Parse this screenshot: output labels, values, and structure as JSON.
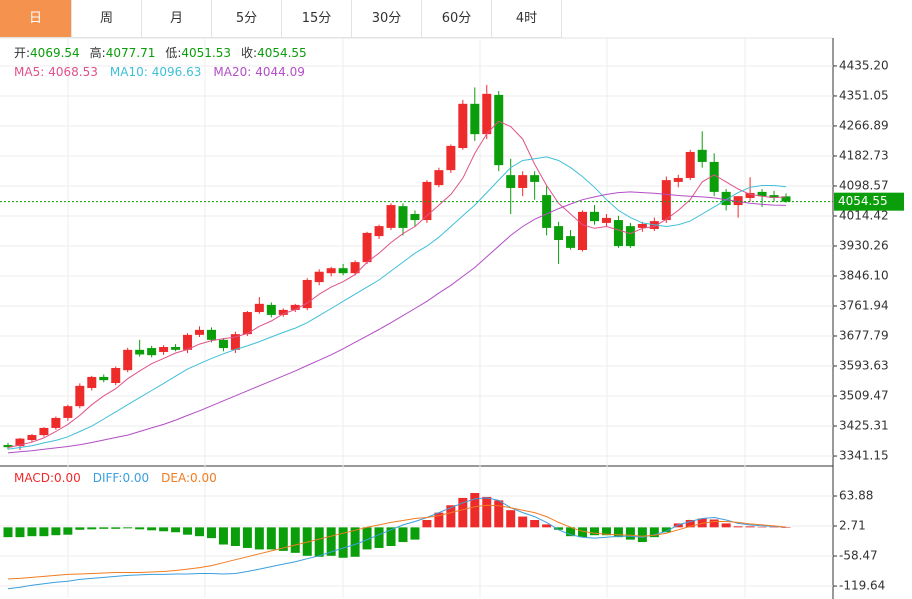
{
  "tabs": [
    "日",
    "周",
    "月",
    "5分",
    "15分",
    "30分",
    "60分",
    "4时"
  ],
  "chart_data": [
    {
      "type": "candlestick",
      "ohlc_labels": [
        "开:",
        "高:",
        "低:",
        "收:"
      ],
      "up_color": "#ee2b2b",
      "down_color": "#0a9e0a",
      "last_price_line": true,
      "grid": true,
      "ohlc": [
        [
          3372,
          3378,
          3360,
          3366
        ],
        [
          3369,
          3392,
          3358,
          3390
        ],
        [
          3386,
          3403,
          3380,
          3400
        ],
        [
          3400,
          3422,
          3395,
          3420
        ],
        [
          3420,
          3452,
          3415,
          3448
        ],
        [
          3448,
          3485,
          3440,
          3481
        ],
        [
          3481,
          3545,
          3475,
          3538
        ],
        [
          3532,
          3566,
          3525,
          3563
        ],
        [
          3563,
          3570,
          3548,
          3554
        ],
        [
          3546,
          3592,
          3540,
          3588
        ],
        [
          3582,
          3645,
          3576,
          3639
        ],
        [
          3639,
          3667,
          3620,
          3626
        ],
        [
          3644,
          3650,
          3618,
          3624
        ],
        [
          3633,
          3652,
          3625,
          3647
        ],
        [
          3647,
          3655,
          3635,
          3639
        ],
        [
          3639,
          3686,
          3630,
          3681
        ],
        [
          3681,
          3705,
          3675,
          3695
        ],
        [
          3695,
          3702,
          3660,
          3667
        ],
        [
          3667,
          3672,
          3635,
          3644
        ],
        [
          3639,
          3690,
          3630,
          3683
        ],
        [
          3683,
          3748,
          3678,
          3745
        ],
        [
          3745,
          3787,
          3740,
          3768
        ],
        [
          3765,
          3772,
          3730,
          3737
        ],
        [
          3737,
          3755,
          3732,
          3751
        ],
        [
          3751,
          3768,
          3745,
          3765
        ],
        [
          3756,
          3840,
          3750,
          3835
        ],
        [
          3829,
          3865,
          3820,
          3858
        ],
        [
          3854,
          3872,
          3845,
          3868
        ],
        [
          3868,
          3880,
          3848,
          3854
        ],
        [
          3854,
          3890,
          3848,
          3885
        ],
        [
          3885,
          3970,
          3880,
          3967
        ],
        [
          3958,
          3990,
          3950,
          3986
        ],
        [
          3981,
          4050,
          3975,
          4045
        ],
        [
          4042,
          4050,
          3960,
          3981
        ],
        [
          4020,
          4030,
          3985,
          4003
        ],
        [
          4003,
          4115,
          3995,
          4110
        ],
        [
          4101,
          4150,
          4095,
          4143
        ],
        [
          4143,
          4215,
          4135,
          4211
        ],
        [
          4205,
          4340,
          4200,
          4329
        ],
        [
          4329,
          4375,
          4225,
          4244
        ],
        [
          4244,
          4382,
          4230,
          4357
        ],
        [
          4354,
          4365,
          4140,
          4157
        ],
        [
          4129,
          4175,
          4020,
          4093
        ],
        [
          4093,
          4140,
          4070,
          4129
        ],
        [
          4129,
          4140,
          4060,
          4110
        ],
        [
          4073,
          4100,
          3960,
          3981
        ],
        [
          3986,
          3998,
          3880,
          3947
        ],
        [
          3958,
          3975,
          3920,
          3925
        ],
        [
          3919,
          4030,
          3915,
          4026
        ],
        [
          4026,
          4045,
          3990,
          4000
        ],
        [
          3995,
          4020,
          3985,
          4009
        ],
        [
          4003,
          4015,
          3925,
          3930
        ],
        [
          3986,
          3995,
          3925,
          3930
        ],
        [
          3981,
          3998,
          3970,
          3992
        ],
        [
          3978,
          4010,
          3972,
          4000
        ],
        [
          4003,
          4125,
          3995,
          4115
        ],
        [
          4110,
          4130,
          4095,
          4121
        ],
        [
          4121,
          4200,
          4115,
          4194
        ],
        [
          4200,
          4252,
          4150,
          4166
        ],
        [
          4166,
          4190,
          4070,
          4082
        ],
        [
          4082,
          4090,
          4030,
          4045
        ],
        [
          4045,
          4070,
          4010,
          4070
        ],
        [
          4065,
          4123,
          4055,
          4079
        ],
        [
          4082,
          4090,
          4040,
          4070
        ],
        [
          4073,
          4085,
          4055,
          4065
        ],
        [
          4069.54,
          4077.71,
          4051.53,
          4054.55
        ]
      ],
      "series": [
        {
          "name": "MA5:",
          "color": "#e0528a",
          "values": [
            3365,
            3372,
            3380,
            3392,
            3410,
            3430,
            3455,
            3485,
            3510,
            3530,
            3558,
            3580,
            3600,
            3615,
            3630,
            3640,
            3655,
            3665,
            3670,
            3675,
            3685,
            3705,
            3720,
            3740,
            3752,
            3770,
            3795,
            3815,
            3830,
            3850,
            3885,
            3910,
            3940,
            3965,
            3985,
            4015,
            4045,
            4075,
            4120,
            4190,
            4245,
            4280,
            4265,
            4230,
            4160,
            4100,
            4050,
            4020,
            3990,
            3980,
            3985,
            3975,
            3965,
            3980,
            3985,
            4005,
            4030,
            4060,
            4110,
            4130,
            4110,
            4090,
            4075,
            4070,
            4066,
            4068.53
          ]
        },
        {
          "name": "MA10:",
          "color": "#3fbfd8",
          "values": [
            3360,
            3365,
            3370,
            3378,
            3385,
            3395,
            3410,
            3425,
            3445,
            3465,
            3485,
            3505,
            3525,
            3545,
            3565,
            3585,
            3600,
            3615,
            3628,
            3640,
            3650,
            3662,
            3675,
            3688,
            3700,
            3715,
            3735,
            3755,
            3775,
            3795,
            3815,
            3835,
            3860,
            3885,
            3910,
            3930,
            3955,
            3985,
            4015,
            4045,
            4080,
            4115,
            4150,
            4170,
            4175,
            4180,
            4170,
            4150,
            4125,
            4095,
            4060,
            4030,
            4010,
            3995,
            3990,
            3985,
            3990,
            4000,
            4020,
            4040,
            4060,
            4080,
            4095,
            4100,
            4100,
            4096.63
          ]
        },
        {
          "name": "MA20:",
          "color": "#b24ec6",
          "values": [
            3350,
            3353,
            3356,
            3360,
            3364,
            3368,
            3373,
            3379,
            3386,
            3393,
            3400,
            3410,
            3420,
            3430,
            3442,
            3455,
            3468,
            3482,
            3496,
            3510,
            3524,
            3538,
            3552,
            3566,
            3580,
            3595,
            3610,
            3625,
            3642,
            3660,
            3678,
            3696,
            3715,
            3735,
            3755,
            3775,
            3798,
            3820,
            3845,
            3870,
            3900,
            3930,
            3960,
            3985,
            4005,
            4020,
            4035,
            4048,
            4060,
            4068,
            4075,
            4080,
            4082,
            4080,
            4078,
            4075,
            4072,
            4070,
            4068,
            4065,
            4060,
            4055,
            4050,
            4047,
            4045,
            4044.09
          ]
        }
      ],
      "ylim": [
        3316,
        4508
      ],
      "yticks": [
        {
          "value": 4435.2,
          "label": "4435.20"
        },
        4351.05,
        4266.89,
        4182.73,
        4098.57,
        4014.42,
        3930.26,
        {
          "value": 3846.1,
          "label": "3846.10"
        },
        3761.94,
        3677.79,
        3593.63,
        3509.47,
        3425.31,
        3341.15
      ]
    },
    {
      "type": "macd",
      "grid": true,
      "up_color": "#ee2b2b",
      "down_color": "#0a9e0a",
      "series": [
        {
          "name": "MACD:",
          "kind": "histogram",
          "color": "#ee2b2b",
          "last_label": "0.00",
          "values": [
            -20,
            -20,
            -18,
            -18,
            -16,
            -15,
            -5,
            -4,
            -3,
            -3,
            -2,
            -4,
            -6,
            -8,
            -10,
            -15,
            -18,
            -22,
            -35,
            -38,
            -42,
            -45,
            -45,
            -48,
            -52,
            -58,
            -60,
            -58,
            -62,
            -60,
            -45,
            -42,
            -38,
            -30,
            -25,
            15,
            30,
            45,
            60,
            70,
            62,
            55,
            35,
            22,
            15,
            6,
            -5,
            -18,
            -20,
            -16,
            -16,
            -20,
            -25,
            -30,
            -20,
            -10,
            8,
            15,
            18,
            16,
            8,
            2,
            2,
            1,
            1,
            0
          ]
        },
        {
          "name": "DIFF:",
          "kind": "line",
          "color": "#3b9fe0",
          "last_label": "0.00",
          "values": [
            -125,
            -122,
            -118,
            -115,
            -112,
            -110,
            -106,
            -104,
            -102,
            -100,
            -98,
            -97,
            -96,
            -96,
            -95,
            -95,
            -94,
            -94,
            -95,
            -94,
            -90,
            -85,
            -80,
            -75,
            -70,
            -64,
            -58,
            -50,
            -42,
            -35,
            -25,
            -15,
            -5,
            5,
            12,
            20,
            30,
            40,
            50,
            58,
            60,
            55,
            40,
            30,
            22,
            10,
            -5,
            -15,
            -20,
            -22,
            -20,
            -18,
            -18,
            -20,
            -15,
            -8,
            5,
            12,
            18,
            20,
            15,
            8,
            5,
            3,
            2,
            0
          ]
        },
        {
          "name": "DEA:",
          "kind": "line",
          "color": "#f07c22",
          "last_label": "0.00",
          "values": [
            -105,
            -104,
            -102,
            -100,
            -98,
            -96,
            -95,
            -94,
            -93,
            -92,
            -92,
            -92,
            -91,
            -90,
            -88,
            -85,
            -82,
            -78,
            -72,
            -66,
            -60,
            -54,
            -48,
            -42,
            -36,
            -30,
            -24,
            -18,
            -12,
            -6,
            0,
            5,
            10,
            14,
            18,
            20,
            24,
            30,
            36,
            42,
            45,
            44,
            40,
            35,
            30,
            22,
            10,
            0,
            -8,
            -12,
            -14,
            -15,
            -16,
            -18,
            -16,
            -12,
            -5,
            2,
            8,
            12,
            12,
            10,
            7,
            5,
            3,
            0
          ]
        }
      ],
      "ylim": [
        -144,
        123
      ],
      "yticks": [
        63.88,
        2.71,
        -58.47,
        -119.64
      ]
    }
  ]
}
